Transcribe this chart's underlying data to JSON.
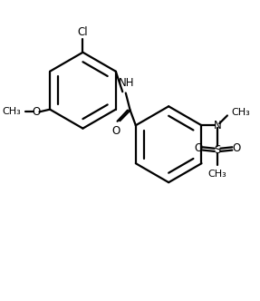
{
  "bg_color": "#ffffff",
  "line_color": "#000000",
  "line_width": 1.6,
  "font_size": 8.5,
  "figsize": [
    2.87,
    3.32
  ],
  "dpi": 100,
  "xlim": [
    0,
    10
  ],
  "ylim": [
    0,
    11.5
  ]
}
